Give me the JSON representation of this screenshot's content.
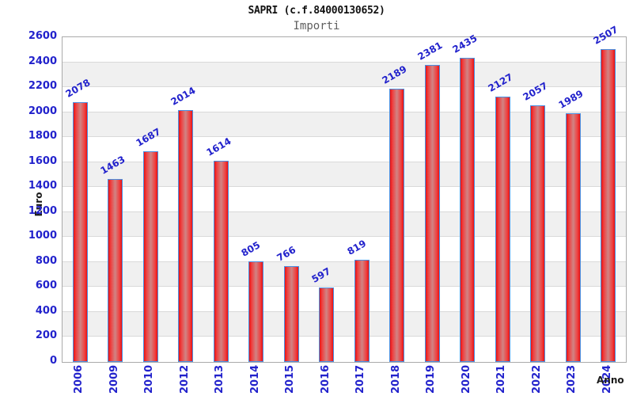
{
  "header": {
    "title": "SAPRI (c.f.84000130652)",
    "subtitle": "Importi"
  },
  "chart_data": {
    "type": "bar",
    "title": "SAPRI (c.f.84000130652)",
    "subtitle": "Importi",
    "xlabel": "Anno",
    "ylabel": "Euro",
    "categories": [
      "2006",
      "2009",
      "2010",
      "2012",
      "2013",
      "2014",
      "2015",
      "2016",
      "2017",
      "2018",
      "2019",
      "2020",
      "2021",
      "2022",
      "2023",
      "2024"
    ],
    "values": [
      2078,
      1463,
      1687,
      2014,
      1614,
      805,
      766,
      597,
      819,
      2189,
      2381,
      2435,
      2127,
      2057,
      1989,
      2507
    ],
    "ylim": [
      0,
      2600
    ],
    "ytick_step": 200,
    "yticks": [
      0,
      200,
      400,
      600,
      800,
      1000,
      1200,
      1400,
      1600,
      1800,
      2000,
      2200,
      2400,
      2600
    ],
    "grid": true,
    "legend": "none",
    "bar_labels_rotation_deg": -30,
    "xtick_rotation_deg": -90,
    "colors": {
      "tick_label_blue": "#2222cc",
      "bar_red": "#e81212",
      "bar_center_highlight": "#d08484",
      "bar_border_blue": "#4a90e2",
      "band_gray": "#f0f0f0",
      "gridline_gray": "#d9d9d9",
      "plot_border_gray": "#aaaaaa",
      "title_color": "#111111",
      "subtitle_color": "#5e5e5e"
    }
  }
}
